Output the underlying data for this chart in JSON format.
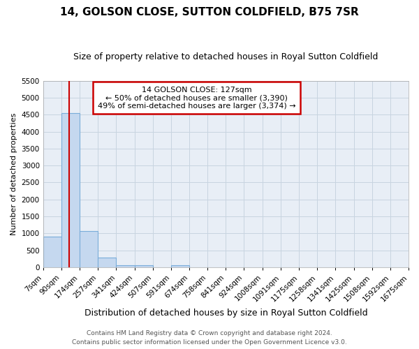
{
  "title": "14, GOLSON CLOSE, SUTTON COLDFIELD, B75 7SR",
  "subtitle": "Size of property relative to detached houses in Royal Sutton Coldfield",
  "xlabel": "Distribution of detached houses by size in Royal Sutton Coldfield",
  "ylabel": "Number of detached properties",
  "footer_line1": "Contains HM Land Registry data © Crown copyright and database right 2024.",
  "footer_line2": "Contains public sector information licensed under the Open Government Licence v3.0.",
  "annotation_title": "14 GOLSON CLOSE: 127sqm",
  "annotation_line2": "← 50% of detached houses are smaller (3,390)",
  "annotation_line3": "49% of semi-detached houses are larger (3,374) →",
  "property_size": 127,
  "bar_color": "#c5d8ef",
  "bar_edge_color": "#7aadda",
  "vline_color": "#cc0000",
  "annotation_box_edgecolor": "#cc0000",
  "bg_color": "#e8eef6",
  "grid_color": "#c8d4e0",
  "ylim": [
    0,
    5500
  ],
  "yticks": [
    0,
    500,
    1000,
    1500,
    2000,
    2500,
    3000,
    3500,
    4000,
    4500,
    5000,
    5500
  ],
  "bin_edges": [
    7,
    90,
    174,
    257,
    341,
    424,
    507,
    591,
    674,
    758,
    841,
    924,
    1008,
    1091,
    1175,
    1258,
    1341,
    1425,
    1508,
    1592,
    1675
  ],
  "bin_labels": [
    "7sqm",
    "90sqm",
    "174sqm",
    "257sqm",
    "341sqm",
    "424sqm",
    "507sqm",
    "591sqm",
    "674sqm",
    "758sqm",
    "841sqm",
    "924sqm",
    "1008sqm",
    "1091sqm",
    "1175sqm",
    "1258sqm",
    "1341sqm",
    "1425sqm",
    "1508sqm",
    "1592sqm",
    "1675sqm"
  ],
  "bar_heights": [
    900,
    4540,
    1070,
    285,
    70,
    55,
    0,
    55,
    0,
    0,
    0,
    0,
    0,
    0,
    0,
    0,
    0,
    0,
    0,
    0
  ],
  "title_fontsize": 11,
  "subtitle_fontsize": 9,
  "ylabel_fontsize": 8,
  "xlabel_fontsize": 9,
  "tick_fontsize": 7.5,
  "annotation_fontsize": 8,
  "footer_fontsize": 6.5
}
